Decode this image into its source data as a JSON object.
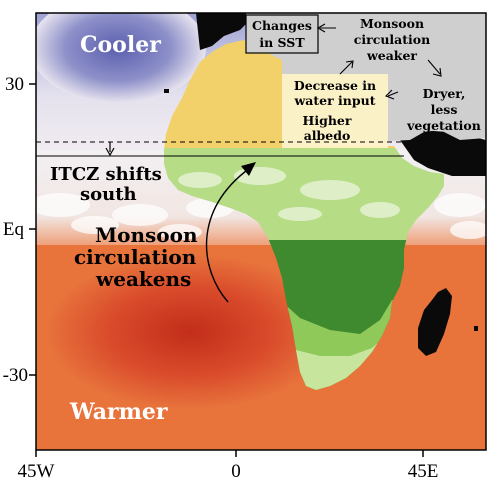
{
  "map": {
    "x_ticks": [
      "45W",
      "0",
      "45E"
    ],
    "y_ticks": [
      "30",
      "Eq",
      "-30"
    ],
    "labels": {
      "cooler": "Cooler",
      "warmer": "Warmer",
      "itcz_line1": "ITCZ shifts",
      "itcz_line2": "south",
      "monsoon_line1": "Monsoon",
      "monsoon_line2": "circulation",
      "monsoon_line3": "weakens"
    },
    "feedback_box": {
      "changes_sst_line1": "Changes",
      "changes_sst_line2": "in SST",
      "monsoon_weaker_line1": "Monsoon",
      "monsoon_weaker_line2": "circulation",
      "monsoon_weaker_line3": "weaker",
      "dryer_line1": "Dryer,",
      "dryer_line2": "less",
      "dryer_line3": "vegetation",
      "decrease_line1": "Decrease in",
      "decrease_line2": "water input",
      "albedo_line1": "Higher",
      "albedo_line2": "albedo"
    },
    "colors": {
      "ocean": "#e8743c",
      "cool_ocean": "#6f74bd",
      "warm_core": "#c8321c",
      "desert": "#f2d16a",
      "sahel": "#b7dc86",
      "forest": "#3f8a2e",
      "light_veg": "#8fc95a",
      "land_black": "#0a0a0a",
      "box_fill": "#cfcfcf"
    }
  }
}
